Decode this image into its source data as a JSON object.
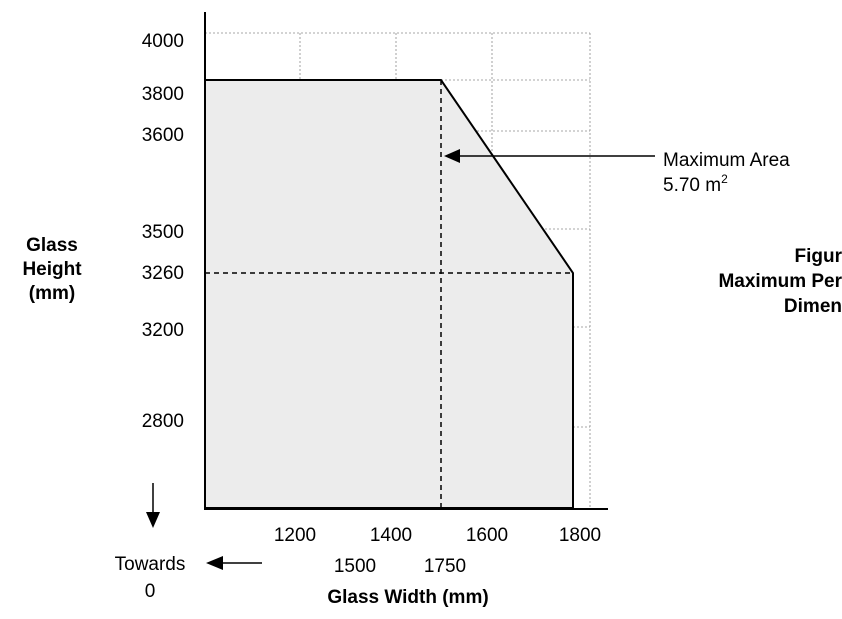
{
  "chart_data": {
    "type": "area",
    "title": "",
    "ylabel_lines": [
      "Glass",
      "Height",
      "(mm)"
    ],
    "xlabel": "Glass Width (mm)",
    "y_ticks": [
      "4000",
      "3800",
      "3600",
      "3500",
      "3260",
      "3200",
      "2800"
    ],
    "x_ticks_row1": [
      "1200",
      "1400",
      "1600",
      "1800"
    ],
    "x_ticks_row2": [
      "1500",
      "1750"
    ],
    "envelope": [
      {
        "width": 1200,
        "height": 3800
      },
      {
        "width": 1500,
        "height": 3800
      },
      {
        "width": 1750,
        "height": 3260
      },
      {
        "width": 1750,
        "height": 2800
      }
    ],
    "reference_lines": [
      {
        "axis": "x",
        "value": 1500
      },
      {
        "axis": "y",
        "value": 3260
      }
    ],
    "annotation": {
      "line1": "Maximum Area",
      "line2_base": "5.70 m",
      "line2_sup": "2"
    },
    "figure_caption_lines": [
      "Figur",
      "Maximum Per",
      "Dimen"
    ],
    "towards_zero": {
      "line1": "Towards",
      "line2": "0"
    }
  }
}
